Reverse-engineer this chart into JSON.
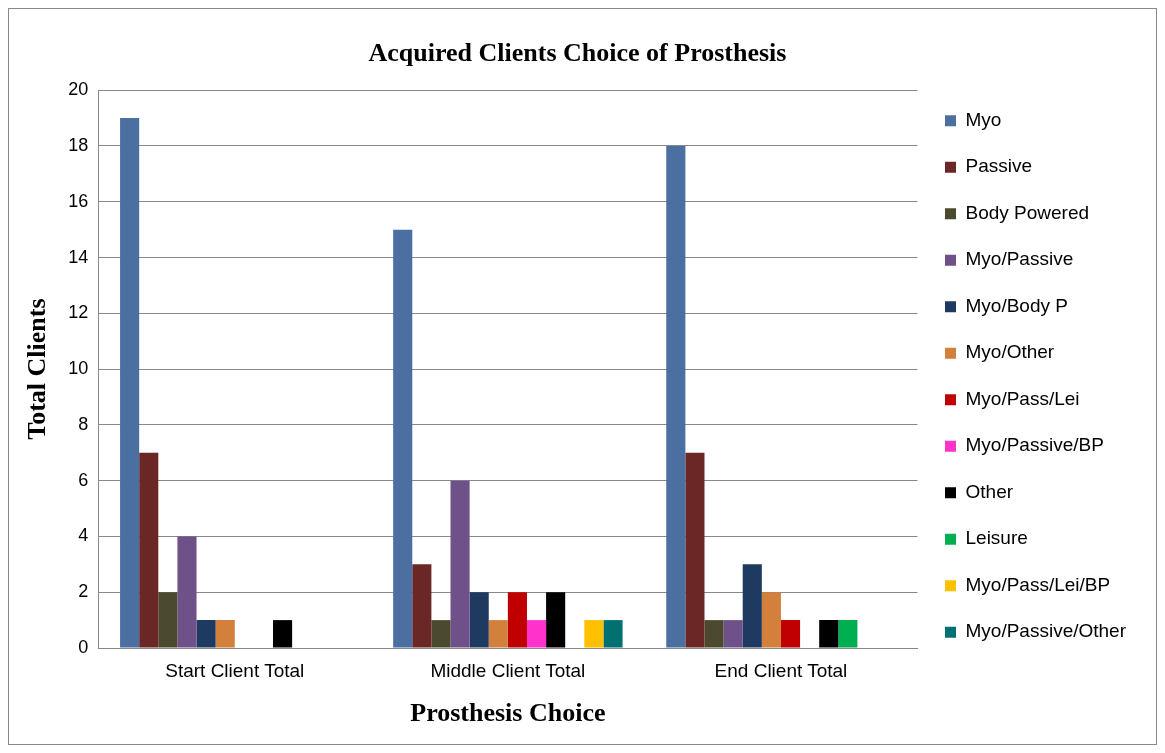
{
  "chart_data": {
    "type": "bar",
    "title": "Acquired Clients Choice of Prosthesis",
    "xlabel": "Prosthesis Choice",
    "ylabel": "Total Clients",
    "categories": [
      "Start Client Total",
      "Middle Client Total",
      "End Client Total"
    ],
    "series": [
      {
        "name": "Myo",
        "color": "#4a6fa0",
        "values": [
          19,
          15,
          18
        ]
      },
      {
        "name": "Passive",
        "color": "#6b2626",
        "values": [
          7,
          3,
          7
        ]
      },
      {
        "name": "Body Powered",
        "color": "#4b4a2e",
        "values": [
          2,
          1,
          1
        ]
      },
      {
        "name": "Myo/Passive",
        "color": "#6e5189",
        "values": [
          4,
          6,
          1
        ]
      },
      {
        "name": "Myo/Body P",
        "color": "#1f3a60",
        "values": [
          1,
          2,
          3
        ]
      },
      {
        "name": "Myo/Other",
        "color": "#d2803c",
        "values": [
          1,
          1,
          2
        ]
      },
      {
        "name": "Myo/Pass/Lei",
        "color": "#c00000",
        "values": [
          0,
          2,
          1
        ]
      },
      {
        "name": "Myo/Passive/BP",
        "color": "#ff33cc",
        "values": [
          0,
          1,
          0
        ]
      },
      {
        "name": "Other",
        "color": "#000000",
        "values": [
          1,
          2,
          1
        ]
      },
      {
        "name": "Leisure",
        "color": "#00b050",
        "values": [
          0,
          0,
          1
        ]
      },
      {
        "name": "Myo/Pass/Lei/BP",
        "color": "#ffc000",
        "values": [
          0,
          1,
          0
        ]
      },
      {
        "name": "Myo/Passive/Other",
        "color": "#007070",
        "values": [
          0,
          1,
          0
        ]
      }
    ],
    "ylim": [
      0,
      20
    ],
    "yticks": [
      0,
      2,
      4,
      6,
      8,
      10,
      12,
      14,
      16,
      18,
      20
    ],
    "grid": "y",
    "legend": "right"
  }
}
